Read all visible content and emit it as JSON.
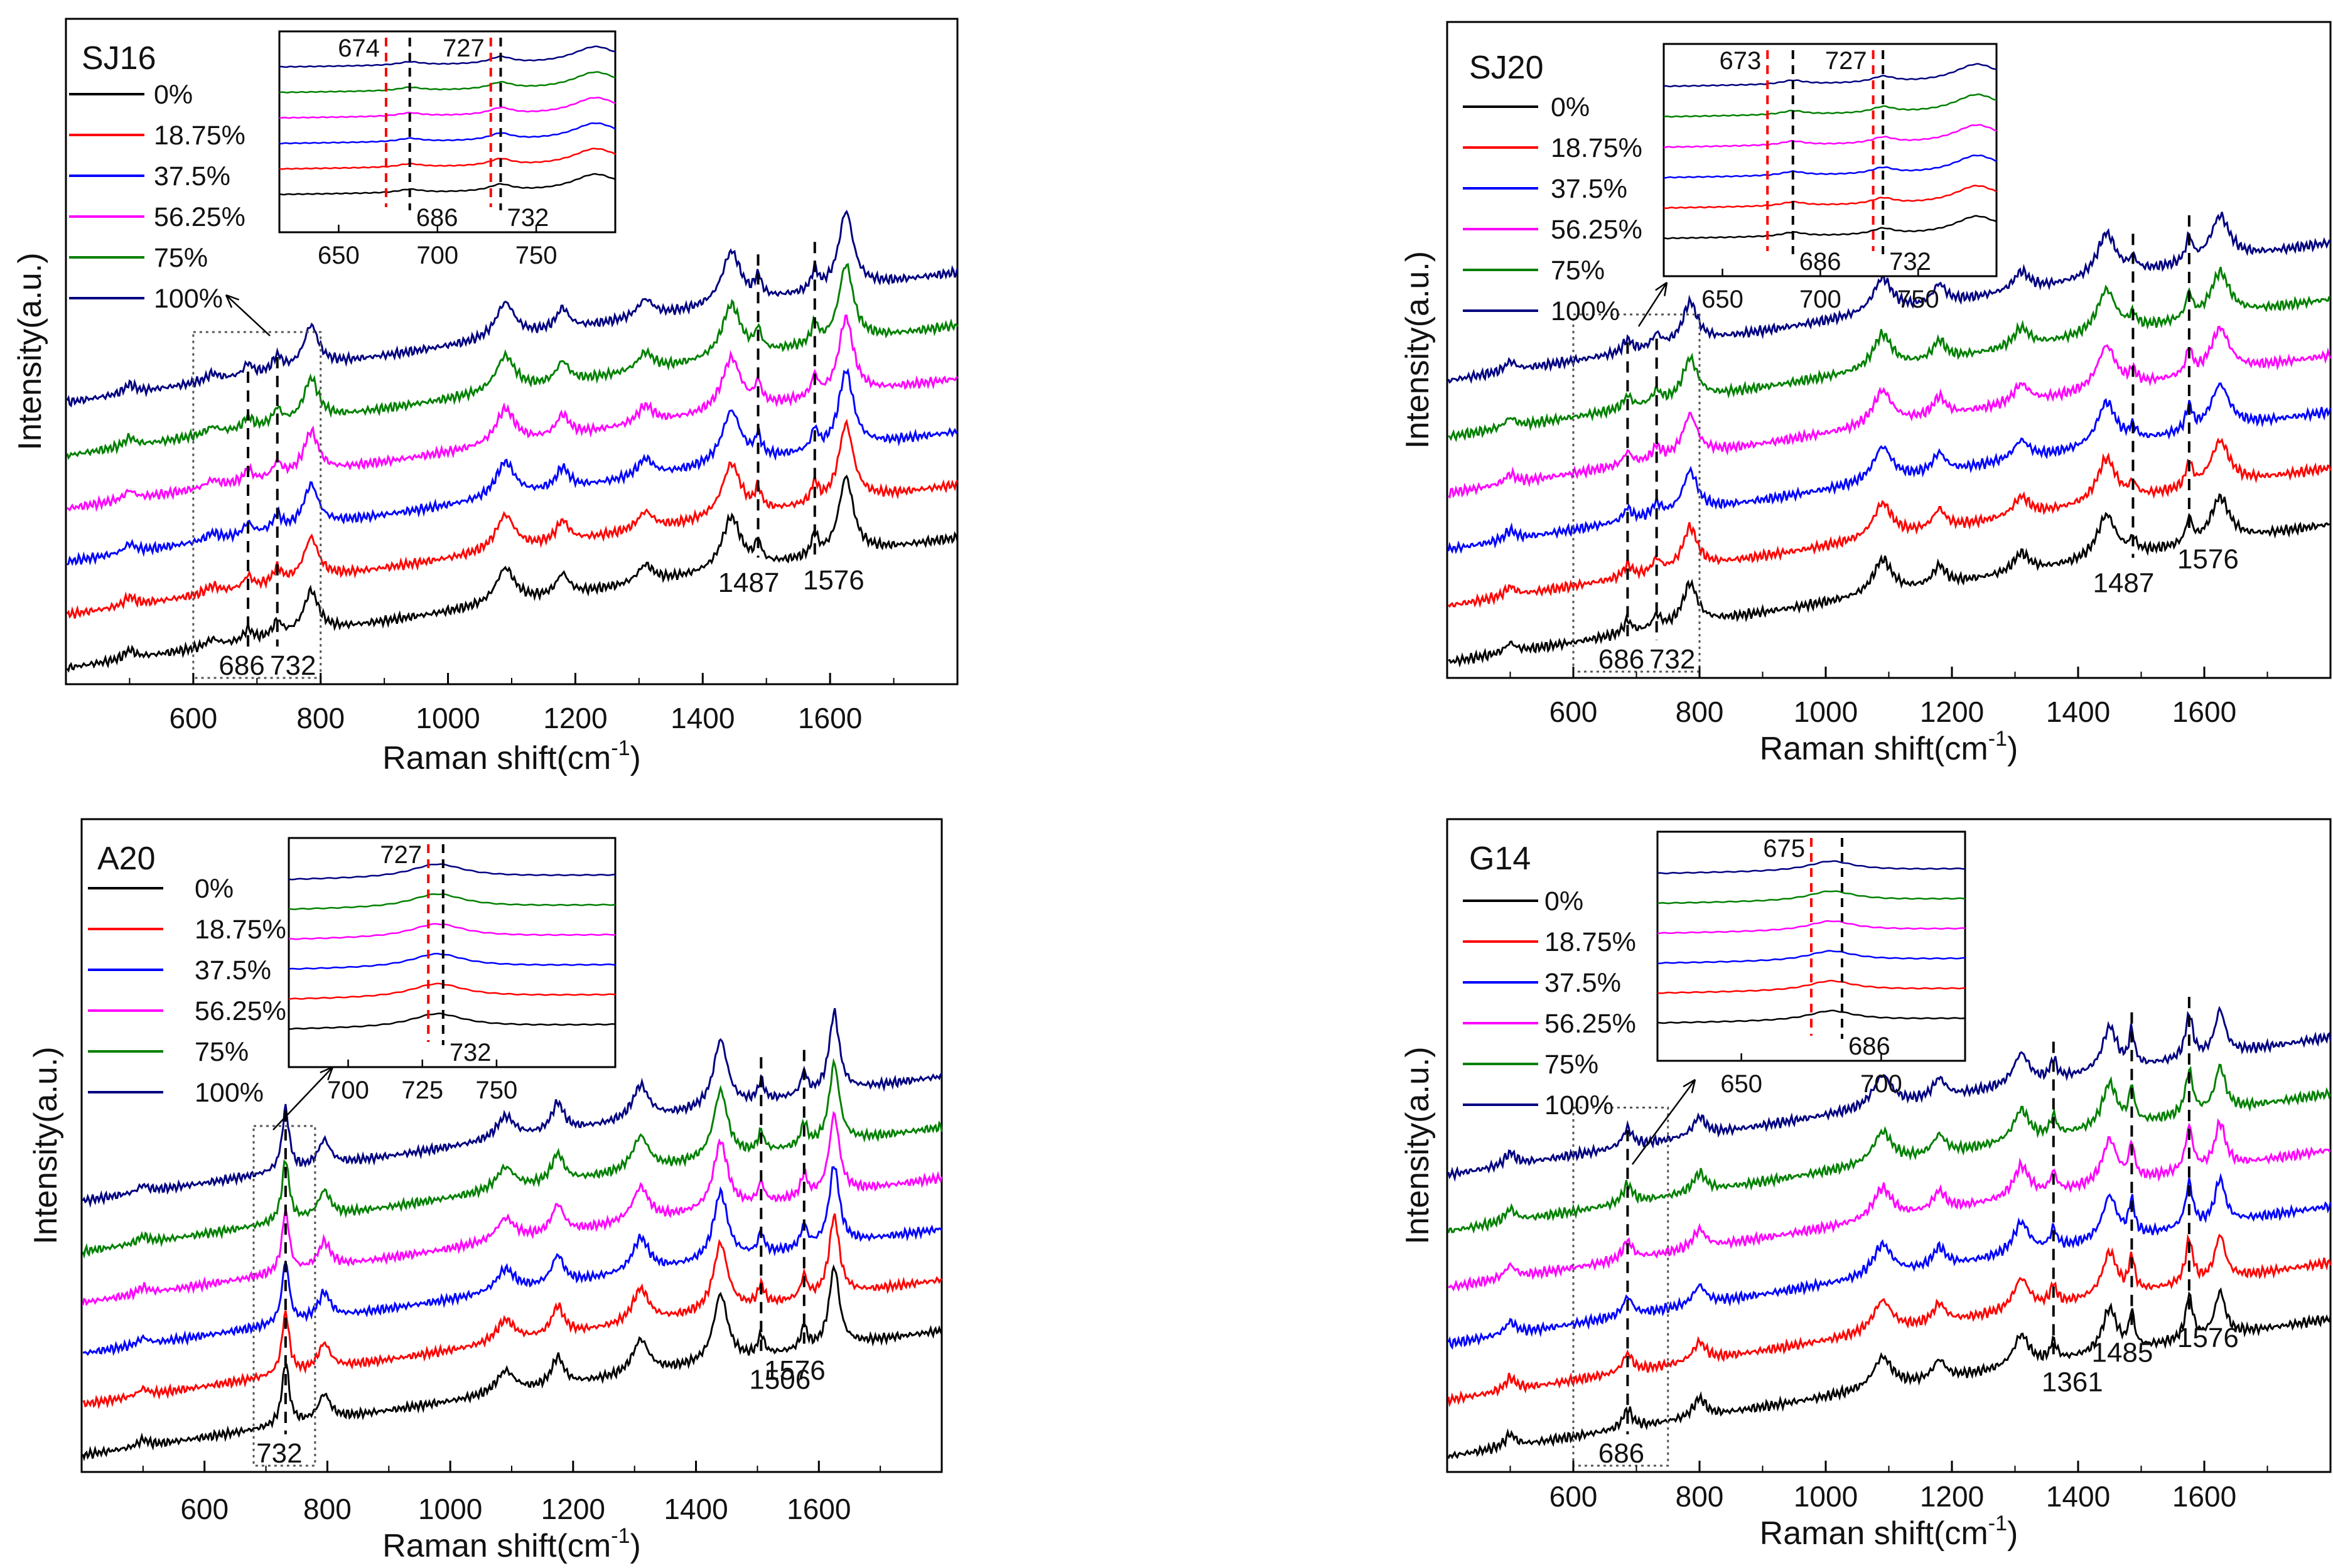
{
  "figure": {
    "description_none": true
  },
  "colors": {
    "0%": "#000000",
    "18.75%": "#ff0000",
    "37.5%": "#0000ff",
    "56.25%": "#ff00ff",
    "75%": "#008000",
    "100%": "#000080",
    "marker_black": "#000000",
    "marker_red": "#ff0000"
  },
  "chart_data": [
    {
      "type": "line",
      "title": "SJ16",
      "xlabel": "Raman shift(cm",
      "xlabel_sup": "-1",
      "xlabel_close": ")",
      "ylabel": "Intensity(a.u.)",
      "xlim": [
        400,
        1800
      ],
      "xticks": [
        600,
        800,
        1000,
        1200,
        1400,
        1600
      ],
      "series_names": [
        "0%",
        "18.75%",
        "37.5%",
        "56.25%",
        "75%",
        "100%"
      ],
      "offsets": [
        0,
        0.09,
        0.18,
        0.27,
        0.36,
        0.45
      ],
      "peaks": [
        {
          "c": 500,
          "h": 0.015,
          "w": 10
        },
        {
          "c": 630,
          "h": 0.012,
          "w": 12
        },
        {
          "c": 686,
          "h": 0.02,
          "w": 8
        },
        {
          "c": 732,
          "h": 0.025,
          "w": 8
        },
        {
          "c": 785,
          "h": 0.07,
          "w": 14
        },
        {
          "c": 1090,
          "h": 0.06,
          "w": 18
        },
        {
          "c": 1180,
          "h": 0.035,
          "w": 12
        },
        {
          "c": 1310,
          "h": 0.03,
          "w": 15
        },
        {
          "c": 1445,
          "h": 0.09,
          "w": 18
        },
        {
          "c": 1487,
          "h": 0.035,
          "w": 6
        },
        {
          "c": 1576,
          "h": 0.035,
          "w": 6
        },
        {
          "c": 1625,
          "h": 0.13,
          "w": 14
        }
      ],
      "markers": [
        686,
        732,
        1487,
        1576
      ],
      "annotations": [
        {
          "text": "686",
          "x": 686,
          "pos": "bottom"
        },
        {
          "text": "732",
          "x": 732,
          "pos": "bottom"
        },
        {
          "text": "1487",
          "x": 1487,
          "pos": "below-curves"
        },
        {
          "text": "1576",
          "x": 1576,
          "pos": "below-curves"
        }
      ],
      "zoom_box": [
        600,
        800
      ],
      "inset": {
        "xlim": [
          620,
          790
        ],
        "xticks": [
          650,
          700,
          750
        ],
        "red_markers": [
          674,
          727
        ],
        "black_markers": [
          686,
          732
        ],
        "top_labels": [
          {
            "text": "674",
            "x": 674
          },
          {
            "text": "727",
            "x": 727
          }
        ],
        "bottom_labels": [
          {
            "text": "686",
            "x": 686
          },
          {
            "text": "732",
            "x": 732
          }
        ],
        "peaks": [
          {
            "c": 686,
            "h": 0.1,
            "w": 7
          },
          {
            "c": 732,
            "h": 0.2,
            "w": 7
          },
          {
            "c": 780,
            "h": 0.5,
            "w": 14
          }
        ]
      }
    },
    {
      "type": "line",
      "title": "SJ20",
      "xlabel": "Raman shift(cm",
      "xlabel_sup": "-1",
      "xlabel_close": ")",
      "ylabel": "Intensity(a.u.)",
      "xlim": [
        400,
        1800
      ],
      "xticks": [
        600,
        800,
        1000,
        1200,
        1400,
        1600
      ],
      "series_names": [
        "0%",
        "18.75%",
        "37.5%",
        "56.25%",
        "75%",
        "100%"
      ],
      "offsets": [
        0,
        0.09,
        0.18,
        0.27,
        0.36,
        0.45
      ],
      "peaks": [
        {
          "c": 500,
          "h": 0.015,
          "w": 10
        },
        {
          "c": 686,
          "h": 0.02,
          "w": 8
        },
        {
          "c": 732,
          "h": 0.02,
          "w": 8
        },
        {
          "c": 785,
          "h": 0.065,
          "w": 14
        },
        {
          "c": 1090,
          "h": 0.055,
          "w": 18
        },
        {
          "c": 1180,
          "h": 0.03,
          "w": 12
        },
        {
          "c": 1310,
          "h": 0.03,
          "w": 15
        },
        {
          "c": 1445,
          "h": 0.07,
          "w": 18
        },
        {
          "c": 1487,
          "h": 0.02,
          "w": 6
        },
        {
          "c": 1576,
          "h": 0.04,
          "w": 6
        },
        {
          "c": 1625,
          "h": 0.07,
          "w": 18
        }
      ],
      "markers": [
        686,
        732,
        1487,
        1576
      ],
      "annotations": [
        {
          "text": "686",
          "x": 686,
          "pos": "bottom"
        },
        {
          "text": "732",
          "x": 732,
          "pos": "bottom"
        },
        {
          "text": "1487",
          "x": 1487,
          "pos": "below-curves"
        },
        {
          "text": "1576",
          "x": 1576,
          "pos": "below-curves"
        }
      ],
      "zoom_box": [
        600,
        800
      ],
      "inset": {
        "xlim": [
          620,
          790
        ],
        "xticks": [
          650,
          700,
          750
        ],
        "red_markers": [
          673,
          727
        ],
        "black_markers": [
          686,
          732
        ],
        "top_labels": [
          {
            "text": "673",
            "x": 673
          },
          {
            "text": "727",
            "x": 727
          }
        ],
        "bottom_labels": [
          {
            "text": "686",
            "x": 686
          },
          {
            "text": "732",
            "x": 732
          }
        ],
        "peaks": [
          {
            "c": 686,
            "h": 0.1,
            "w": 7
          },
          {
            "c": 732,
            "h": 0.15,
            "w": 7
          },
          {
            "c": 780,
            "h": 0.45,
            "w": 14
          }
        ]
      }
    },
    {
      "type": "line",
      "title": "A20",
      "xlabel": "Raman shift(cm",
      "xlabel_sup": "-1",
      "xlabel_close": ")",
      "ylabel": "Intensity(a.u.)",
      "xlim": [
        400,
        1800
      ],
      "xticks": [
        600,
        800,
        1000,
        1200,
        1400,
        1600
      ],
      "series_names": [
        "0%",
        "18.75%",
        "37.5%",
        "56.25%",
        "75%",
        "100%"
      ],
      "offsets": [
        0,
        0.09,
        0.18,
        0.27,
        0.36,
        0.45
      ],
      "peaks": [
        {
          "c": 500,
          "h": 0.012,
          "w": 10
        },
        {
          "c": 732,
          "h": 0.11,
          "w": 7
        },
        {
          "c": 795,
          "h": 0.045,
          "w": 12
        },
        {
          "c": 1090,
          "h": 0.04,
          "w": 18
        },
        {
          "c": 1175,
          "h": 0.05,
          "w": 12
        },
        {
          "c": 1310,
          "h": 0.06,
          "w": 16
        },
        {
          "c": 1440,
          "h": 0.12,
          "w": 14
        },
        {
          "c": 1506,
          "h": 0.035,
          "w": 6
        },
        {
          "c": 1576,
          "h": 0.04,
          "w": 6
        },
        {
          "c": 1625,
          "h": 0.14,
          "w": 10
        }
      ],
      "markers": [
        732,
        1506,
        1576
      ],
      "annotations": [
        {
          "text": "732",
          "x": 732,
          "pos": "bottom"
        },
        {
          "text": "1506",
          "x": 1506,
          "pos": "below-curves"
        },
        {
          "text": "1576",
          "x": 1576,
          "pos": "below-curves"
        }
      ],
      "zoom_box": [
        680,
        780
      ],
      "inset": {
        "xlim": [
          680,
          790
        ],
        "xticks": [
          700,
          725,
          750
        ],
        "red_markers": [
          727
        ],
        "black_markers": [
          732
        ],
        "top_labels": [
          {
            "text": "727",
            "x": 727
          }
        ],
        "bottom_labels": [
          {
            "text": "732",
            "x": 732
          }
        ],
        "peaks": [
          {
            "c": 730,
            "h": 0.35,
            "w": 11
          }
        ]
      }
    },
    {
      "type": "line",
      "title": "G14",
      "xlabel": "Raman shift(cm",
      "xlabel_sup": "-1",
      "xlabel_close": ")",
      "ylabel": "Intensity(a.u.)",
      "xlim": [
        400,
        1800
      ],
      "xticks": [
        600,
        800,
        1000,
        1200,
        1400,
        1600
      ],
      "series_names": [
        "0%",
        "18.75%",
        "37.5%",
        "56.25%",
        "75%",
        "100%"
      ],
      "offsets": [
        0,
        0.09,
        0.18,
        0.27,
        0.36,
        0.45
      ],
      "peaks": [
        {
          "c": 500,
          "h": 0.02,
          "w": 10
        },
        {
          "c": 686,
          "h": 0.03,
          "w": 9
        },
        {
          "c": 800,
          "h": 0.03,
          "w": 12
        },
        {
          "c": 1090,
          "h": 0.05,
          "w": 18
        },
        {
          "c": 1180,
          "h": 0.03,
          "w": 12
        },
        {
          "c": 1310,
          "h": 0.05,
          "w": 15
        },
        {
          "c": 1361,
          "h": 0.03,
          "w": 6
        },
        {
          "c": 1450,
          "h": 0.07,
          "w": 14
        },
        {
          "c": 1485,
          "h": 0.055,
          "w": 5
        },
        {
          "c": 1576,
          "h": 0.07,
          "w": 7
        },
        {
          "c": 1625,
          "h": 0.07,
          "w": 10
        }
      ],
      "markers": [
        686,
        1361,
        1485,
        1576
      ],
      "annotations": [
        {
          "text": "686",
          "x": 686,
          "pos": "bottom"
        },
        {
          "text": "1361",
          "x": 1361,
          "pos": "below-curves"
        },
        {
          "text": "1485",
          "x": 1485,
          "pos": "below-curves"
        },
        {
          "text": "1576",
          "x": 1576,
          "pos": "below-curves"
        }
      ],
      "zoom_box": [
        600,
        750
      ],
      "inset": {
        "xlim": [
          620,
          730
        ],
        "xticks": [
          650,
          700
        ],
        "red_markers": [
          675
        ],
        "black_markers": [
          686
        ],
        "top_labels": [
          {
            "text": "675",
            "x": 675
          }
        ],
        "bottom_labels": [
          {
            "text": "686",
            "x": 686
          }
        ],
        "peaks": [
          {
            "c": 682,
            "h": 0.25,
            "w": 10
          }
        ]
      }
    }
  ]
}
